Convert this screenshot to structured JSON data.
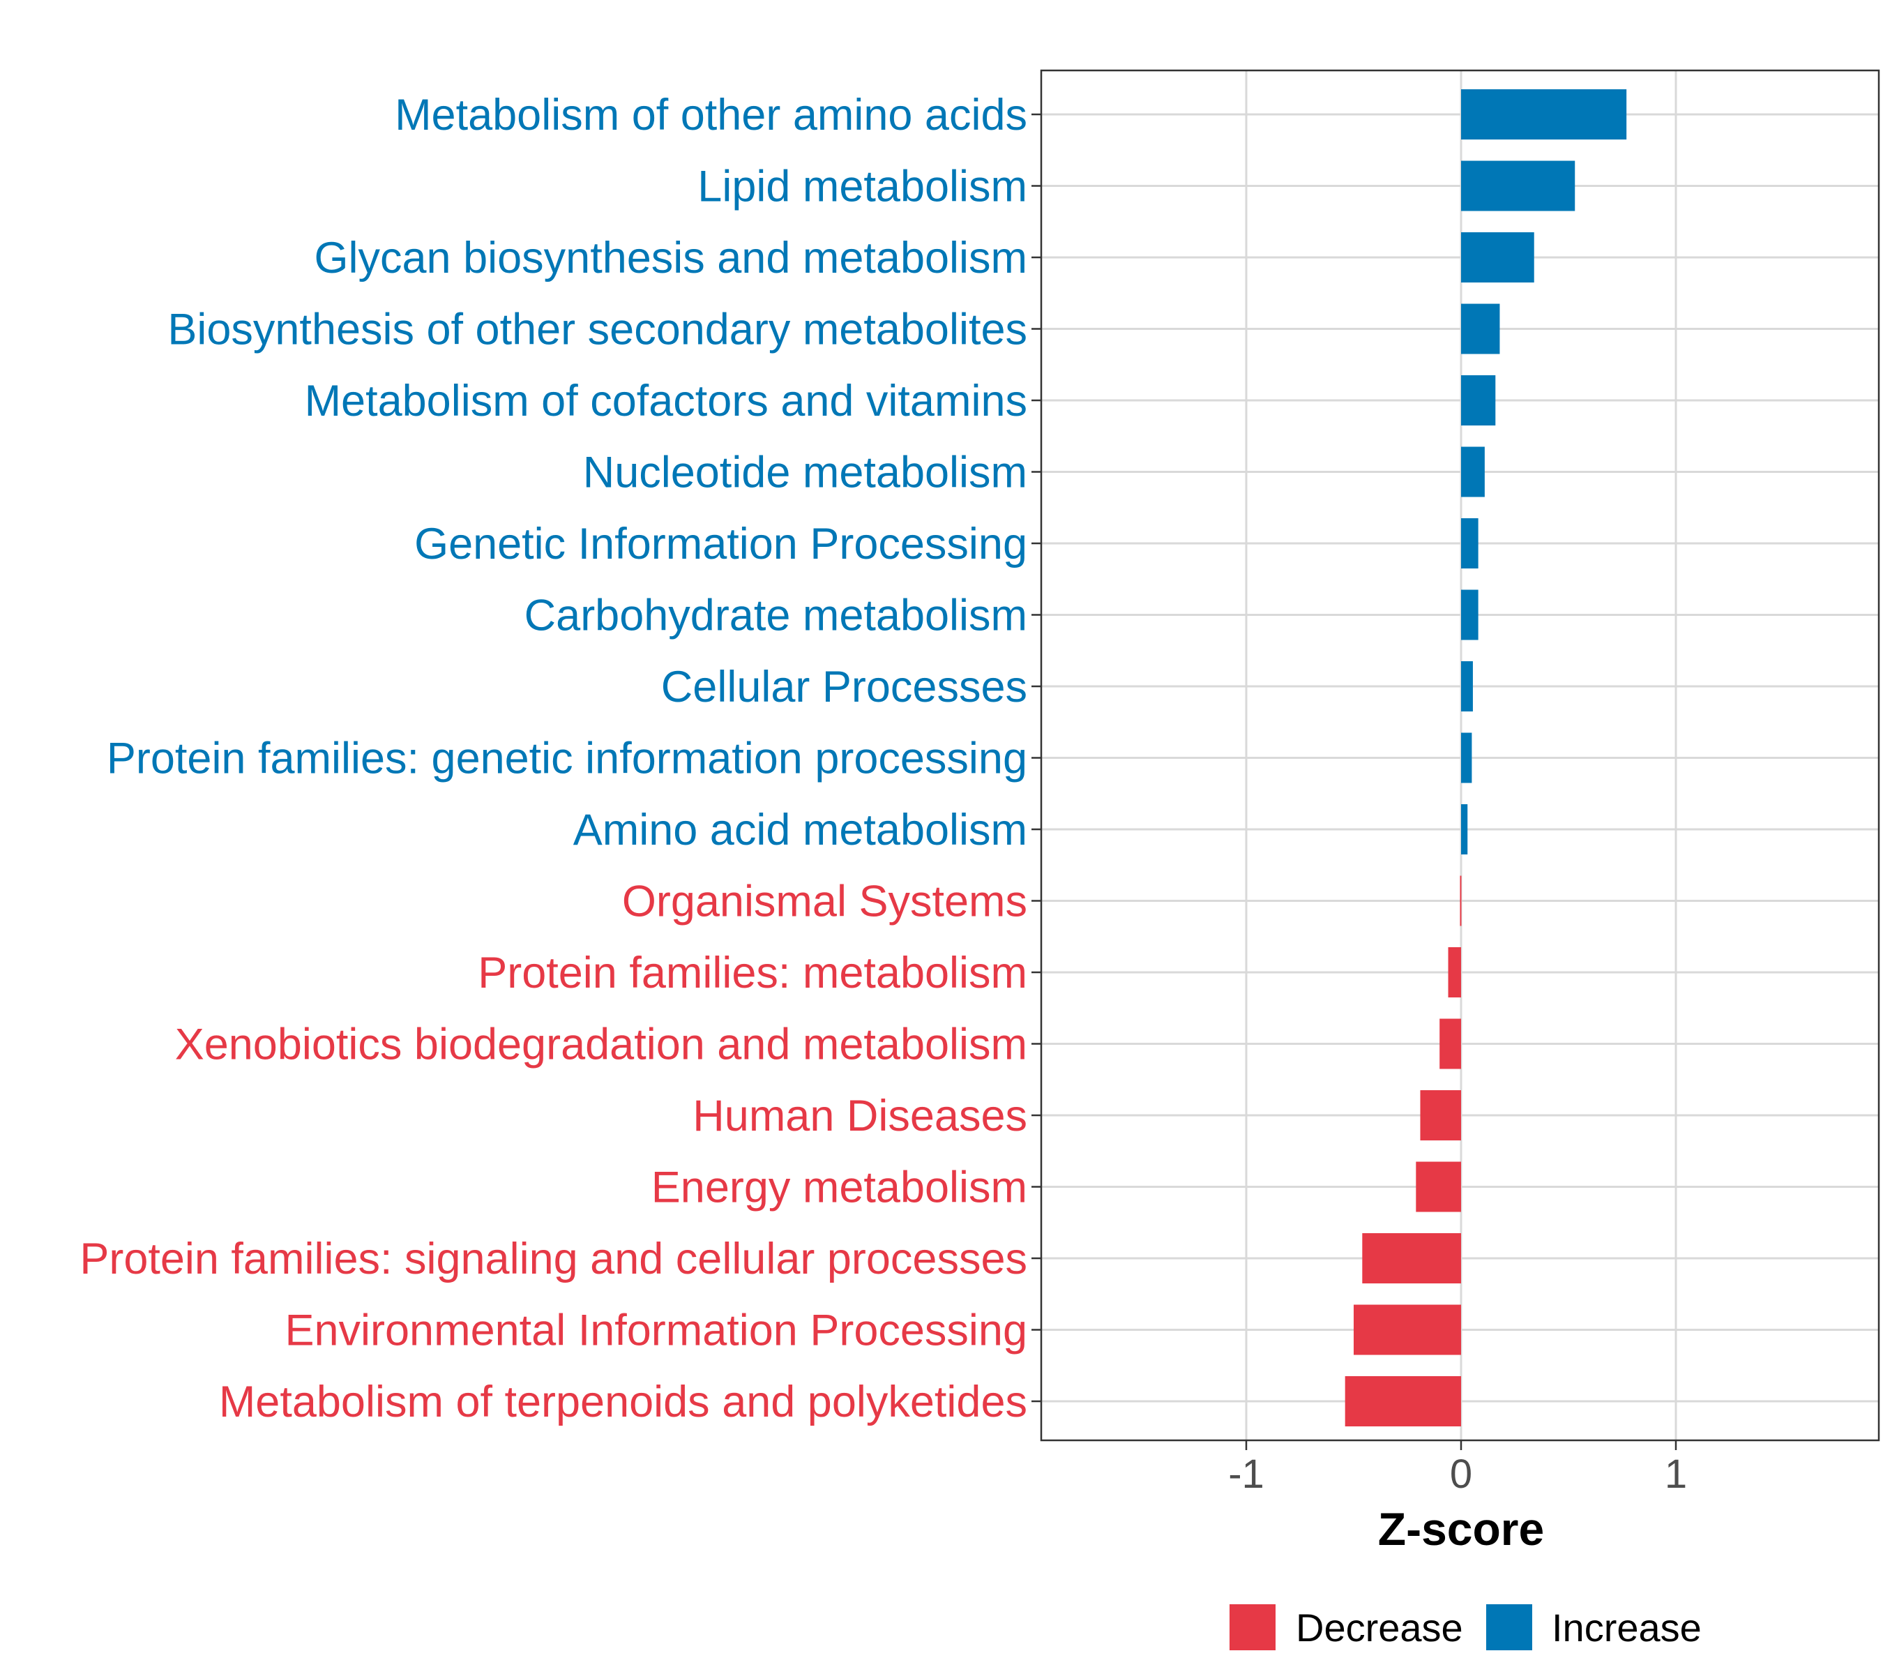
{
  "chart_data": {
    "type": "bar",
    "orientation": "horizontal",
    "categories": [
      "Metabolism of other amino acids",
      "Lipid metabolism",
      "Glycan biosynthesis and metabolism",
      "Biosynthesis of other secondary metabolites",
      "Metabolism of cofactors and vitamins",
      "Nucleotide metabolism",
      "Genetic Information Processing",
      "Carbohydrate metabolism",
      "Cellular Processes",
      "Protein families: genetic information processing",
      "Amino acid metabolism",
      "Organismal Systems",
      "Protein families: metabolism",
      "Xenobiotics biodegradation and metabolism",
      "Human Diseases",
      "Energy metabolism",
      "Protein families: signaling and cellular processes",
      "Environmental Information Processing",
      "Metabolism of terpenoids and polyketides"
    ],
    "values": [
      0.77,
      0.53,
      0.34,
      0.18,
      0.16,
      0.11,
      0.08,
      0.08,
      0.055,
      0.05,
      0.03,
      -0.005,
      -0.06,
      -0.1,
      -0.19,
      -0.21,
      -0.46,
      -0.5,
      -0.54
    ],
    "groups": [
      "Increase",
      "Increase",
      "Increase",
      "Increase",
      "Increase",
      "Increase",
      "Increase",
      "Increase",
      "Increase",
      "Increase",
      "Increase",
      "Decrease",
      "Decrease",
      "Decrease",
      "Decrease",
      "Decrease",
      "Decrease",
      "Decrease",
      "Decrease"
    ],
    "title": "",
    "xlabel": "Z-score",
    "ylabel": "",
    "xlim": [
      -1.95,
      1.95
    ],
    "xticks": [
      -1,
      0,
      1
    ],
    "xtick_labels": [
      "-1",
      "0",
      "1"
    ],
    "grid": true,
    "legend": {
      "position": "bottom",
      "entries": [
        {
          "label": "Decrease",
          "color": "#E63946"
        },
        {
          "label": "Increase",
          "color": "#0077B6"
        }
      ]
    },
    "colors": {
      "Decrease": "#E63946",
      "Increase": "#0077B6"
    }
  }
}
